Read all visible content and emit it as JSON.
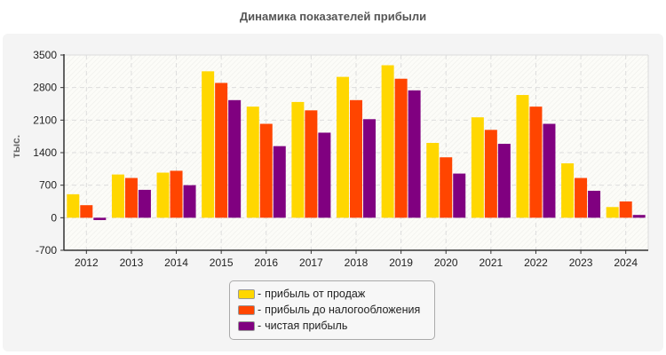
{
  "chart_data": {
    "type": "bar",
    "title": "Динамика показателей прибыли",
    "ylabel": "тыс.",
    "xlabel": "",
    "ylim": [
      -700,
      3500
    ],
    "yticks": [
      -700,
      0,
      700,
      1400,
      2100,
      2800,
      3500
    ],
    "grid": true,
    "legend_position": "bottom",
    "categories": [
      "2012",
      "2013",
      "2014",
      "2015",
      "2016",
      "2017",
      "2018",
      "2019",
      "2020",
      "2021",
      "2022",
      "2023",
      "2024"
    ],
    "series": [
      {
        "name": "прибыль от продаж",
        "color": "#FFD700",
        "values": [
          505,
          930,
          970,
          3150,
          2390,
          2490,
          3030,
          3280,
          1610,
          2160,
          2640,
          1170,
          230
        ]
      },
      {
        "name": "прибыль до налогообложения",
        "color": "#FF4500",
        "values": [
          270,
          855,
          1010,
          2900,
          2020,
          2310,
          2530,
          2990,
          1300,
          1890,
          2390,
          855,
          350
        ]
      },
      {
        "name": "чистая прибыль",
        "color": "#800080",
        "values": [
          -50,
          600,
          700,
          2530,
          1540,
          1830,
          2120,
          2740,
          950,
          1590,
          2020,
          580,
          60
        ]
      }
    ]
  },
  "legend": {
    "separator": "-"
  }
}
